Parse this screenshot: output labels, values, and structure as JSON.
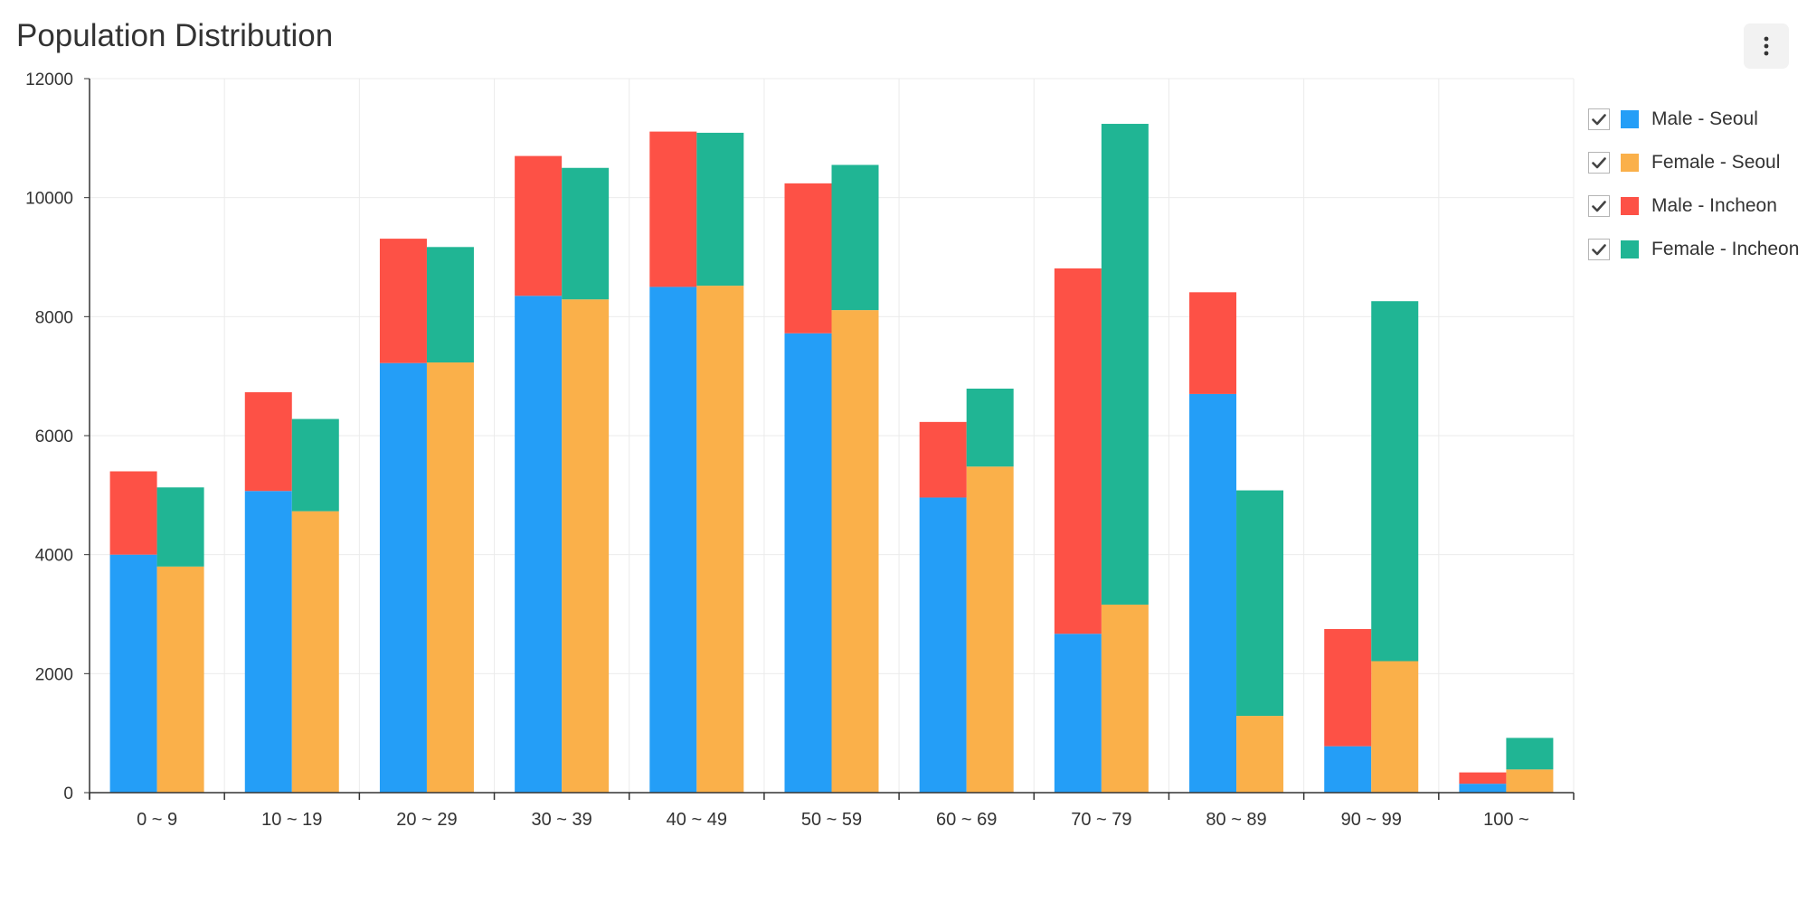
{
  "title": "Population Distribution",
  "menu": {
    "icon": "more-vertical-icon"
  },
  "colors": {
    "male_seoul": "#249ef7",
    "female_seoul": "#fab04a",
    "male_incheon": "#fd5146",
    "female_incheon": "#20b594"
  },
  "legend": {
    "items": [
      {
        "label": "Male - Seoul",
        "checked": true
      },
      {
        "label": "Female - Seoul",
        "checked": true
      },
      {
        "label": "Male - Incheon",
        "checked": true
      },
      {
        "label": "Female - Incheon",
        "checked": true
      }
    ]
  },
  "chart_data": {
    "type": "bar",
    "stacked": true,
    "title": "Population Distribution",
    "xlabel": "",
    "ylabel": "",
    "ylim": [
      0,
      12000
    ],
    "yticks": [
      0,
      2000,
      4000,
      6000,
      8000,
      10000,
      12000
    ],
    "grid": true,
    "legend_position": "right",
    "categories": [
      "0 ~ 9",
      "10 ~ 19",
      "20 ~ 29",
      "30 ~ 39",
      "40 ~ 49",
      "50 ~ 59",
      "60 ~ 69",
      "70 ~ 79",
      "80 ~ 89",
      "90 ~ 99",
      "100 ~"
    ],
    "series": [
      {
        "name": "Male - Seoul",
        "stack": "Male",
        "values": [
          4000,
          5070,
          7220,
          8350,
          8500,
          7720,
          4960,
          2670,
          6700,
          780,
          150
        ]
      },
      {
        "name": "Female - Seoul",
        "stack": "Female",
        "values": [
          3800,
          4730,
          7230,
          8290,
          8520,
          8110,
          5480,
          3160,
          1290,
          2210,
          390
        ]
      },
      {
        "name": "Male - Incheon",
        "stack": "Male",
        "values": [
          1400,
          1660,
          2090,
          2350,
          2610,
          2520,
          1270,
          6140,
          1710,
          1970,
          190
        ]
      },
      {
        "name": "Female - Incheon",
        "stack": "Female",
        "values": [
          1330,
          1550,
          1940,
          2210,
          2570,
          2440,
          1310,
          8080,
          3790,
          6050,
          530
        ]
      }
    ]
  }
}
